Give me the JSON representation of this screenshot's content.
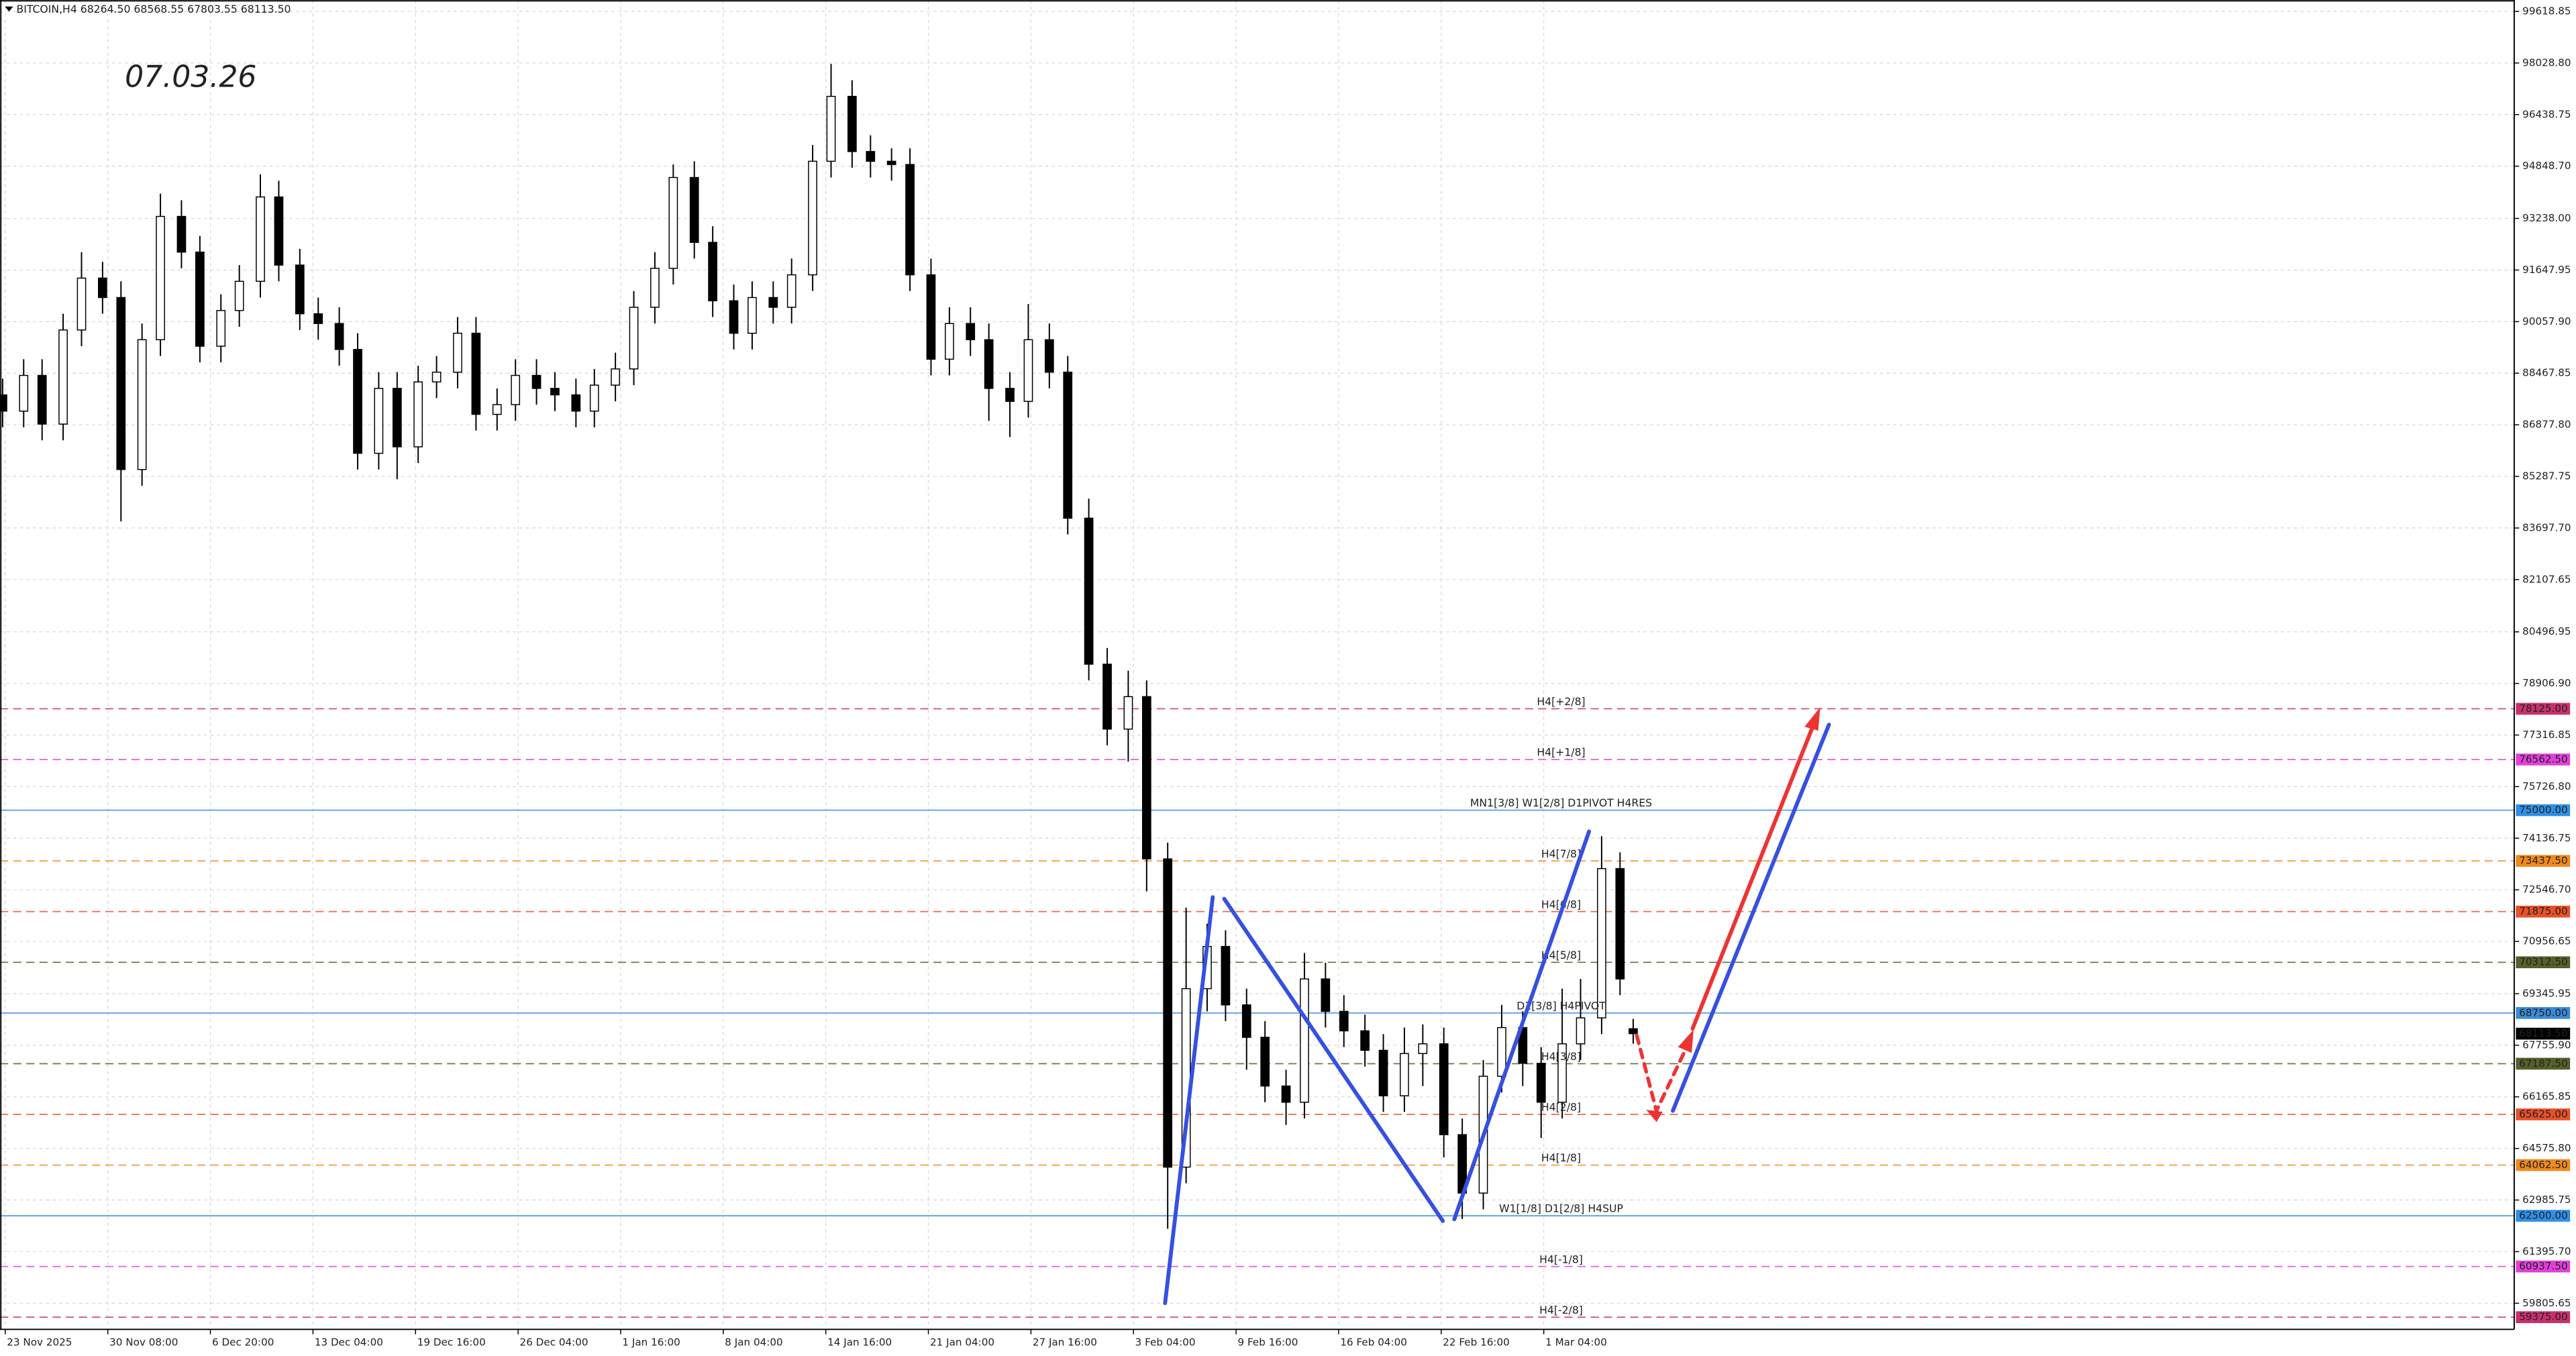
{
  "chart_data": {
    "type": "candlestick",
    "header": "BITCOIN,H4  68264.50 68568.55 67803.55 68113.50",
    "annotation": "07.03.26",
    "color": "#000000",
    "up_color": "#ffffff",
    "down_color": "#000000",
    "grid": true,
    "xlim": [
      -1,
      955
    ],
    "ylim": [
      59050,
      99970
    ],
    "x": [
      0,
      8,
      15,
      23,
      30,
      38,
      45,
      53,
      60,
      68,
      75,
      83,
      90,
      98,
      105,
      113,
      120,
      128,
      135,
      143,
      150,
      158,
      165,
      173,
      180,
      188,
      195,
      203,
      210,
      218,
      225,
      233,
      240,
      248,
      255,
      263,
      270,
      278,
      285,
      293,
      300,
      308,
      315,
      323,
      330,
      338,
      345,
      353,
      360,
      368,
      375,
      383,
      390,
      398,
      405,
      413,
      420,
      428,
      435,
      443,
      450,
      458,
      465,
      473,
      480,
      488,
      495,
      503,
      510,
      518,
      525,
      533,
      540,
      548,
      555,
      563,
      570,
      578,
      585,
      593,
      600,
      608,
      615,
      620
    ],
    "open": [
      87800,
      87300,
      88400,
      86900,
      89800,
      91400,
      90800,
      85500,
      89500,
      93300,
      92200,
      89300,
      90400,
      91300,
      93900,
      91800,
      90300,
      90000,
      89200,
      86000,
      88000,
      86200,
      88200,
      88500,
      89700,
      87200,
      87500,
      88400,
      88000,
      87800,
      87300,
      88100,
      88600,
      90500,
      91700,
      94500,
      92500,
      90700,
      89700,
      90800,
      90500,
      91500,
      95000,
      97000,
      95300,
      95000,
      94900,
      91500,
      88900,
      90000,
      89500,
      88000,
      87600,
      89500,
      88500,
      84000,
      79500,
      77500,
      78500,
      73500,
      64000,
      69500,
      70800,
      69000,
      68000,
      66500,
      66000,
      69800,
      68800,
      68200,
      67600,
      66200,
      67500,
      67800,
      65000,
      63200,
      66800,
      68300,
      67200,
      66000,
      67800,
      68600,
      73200,
      68264.5
    ],
    "high": [
      88300,
      88900,
      88900,
      90300,
      92200,
      91900,
      91300,
      90000,
      94000,
      93800,
      92700,
      90900,
      91800,
      94600,
      94400,
      92300,
      90800,
      90500,
      89700,
      88500,
      88500,
      88700,
      89000,
      90200,
      90200,
      88000,
      88900,
      88900,
      88500,
      88300,
      88600,
      89100,
      91000,
      92200,
      94900,
      95000,
      93000,
      91200,
      91300,
      91300,
      92000,
      95500,
      98000,
      97500,
      95800,
      95400,
      95400,
      92000,
      90500,
      90500,
      90000,
      88500,
      90600,
      90000,
      89000,
      84600,
      80000,
      79300,
      79000,
      74000,
      72000,
      71500,
      71300,
      69500,
      68500,
      67000,
      70600,
      70300,
      69300,
      68700,
      68100,
      68300,
      68400,
      68300,
      65500,
      67300,
      69000,
      68800,
      67700,
      69500,
      69800,
      74200,
      73700,
      68568.55
    ],
    "low": [
      86800,
      86800,
      86400,
      86400,
      89300,
      90300,
      83900,
      85000,
      89000,
      91700,
      88800,
      88800,
      89900,
      90800,
      91300,
      89800,
      89500,
      88700,
      85500,
      85500,
      85200,
      85700,
      87700,
      88000,
      86700,
      86700,
      87000,
      87500,
      87300,
      86800,
      86800,
      87600,
      88100,
      90000,
      91200,
      92000,
      90200,
      89200,
      89200,
      90000,
      90000,
      91000,
      94500,
      94800,
      94500,
      94400,
      91000,
      88400,
      88400,
      89000,
      87000,
      86500,
      87100,
      88000,
      83500,
      79000,
      77000,
      76500,
      72500,
      62100,
      63500,
      68800,
      68500,
      67000,
      66000,
      65300,
      65500,
      68300,
      67700,
      67100,
      65700,
      65700,
      66500,
      64300,
      62400,
      62700,
      66300,
      66500,
      64900,
      65500,
      67300,
      68100,
      69300,
      67803.55
    ],
    "close": [
      87300,
      88400,
      86900,
      89800,
      91400,
      90800,
      85500,
      89500,
      93300,
      92200,
      89300,
      90400,
      91300,
      93900,
      91800,
      90300,
      90000,
      89200,
      86000,
      88000,
      86200,
      88200,
      88500,
      89700,
      87200,
      87500,
      88400,
      88000,
      87800,
      87300,
      88100,
      88600,
      90500,
      91700,
      94500,
      92500,
      90700,
      89700,
      90800,
      90500,
      91500,
      95000,
      97000,
      95300,
      95000,
      94900,
      91500,
      88900,
      90000,
      89500,
      88000,
      87600,
      89500,
      88500,
      84000,
      79500,
      77500,
      78500,
      73500,
      64000,
      69500,
      70800,
      69000,
      68000,
      66500,
      66000,
      69800,
      68800,
      68200,
      67600,
      66200,
      67500,
      67800,
      65000,
      63200,
      66800,
      68300,
      67200,
      66000,
      67800,
      68600,
      73200,
      69800,
      68113.5
    ],
    "xticks": [
      {
        "value": 1,
        "label": "23 Nov 2025"
      },
      {
        "value": 40,
        "label": "30 Nov 08:00"
      },
      {
        "value": 79,
        "label": "6 Dec 20:00"
      },
      {
        "value": 118,
        "label": "13 Dec 04:00"
      },
      {
        "value": 157,
        "label": "19 Dec 16:00"
      },
      {
        "value": 196,
        "label": "26 Dec 04:00"
      },
      {
        "value": 235,
        "label": "1 Jan 16:00"
      },
      {
        "value": 274,
        "label": "8 Jan 04:00"
      },
      {
        "value": 313,
        "label": "14 Jan 16:00"
      },
      {
        "value": 352,
        "label": "21 Jan 04:00"
      },
      {
        "value": 391,
        "label": "27 Jan 16:00"
      },
      {
        "value": 430,
        "label": "3 Feb 04:00"
      },
      {
        "value": 469,
        "label": "9 Feb 16:00"
      },
      {
        "value": 508,
        "label": "16 Feb 04:00"
      },
      {
        "value": 547,
        "label": "22 Feb 16:00"
      },
      {
        "value": 586,
        "label": "1 Mar 04:00"
      }
    ],
    "yticks": [
      99618.85,
      {
        "value": 98028.8,
        "label": "98028.80"
      },
      96438.75,
      {
        "value": 94848.7,
        "label": "94848.70"
      },
      {
        "value": 93238,
        "label": "93238.00"
      },
      91647.95,
      {
        "value": 90057.9,
        "label": "90057.90"
      },
      88467.85,
      {
        "value": 86877.8,
        "label": "86877.80"
      },
      85287.75,
      {
        "value": 83697.7,
        "label": "83697.70"
      },
      82107.65,
      80496.95,
      {
        "value": 78906.9,
        "label": "78906.90"
      },
      77316.85,
      {
        "value": 75726.8,
        "label": "75726.80"
      },
      74136.75,
      {
        "value": 72546.7,
        "label": "72546.70"
      },
      70956.65,
      69345.95,
      {
        "value": 67755.9,
        "label": "67755.90"
      },
      66165.85,
      {
        "value": 64575.8,
        "label": "64575.80"
      },
      62985.75,
      {
        "value": 61395.7,
        "label": "61395.70"
      },
      59805.65
    ],
    "levels": [
      {
        "value": 78125,
        "label": "78125.00",
        "name": "H4[+2/8]",
        "color": "#c8306e",
        "dashed": true
      },
      {
        "value": 76562.5,
        "label": "76562.50",
        "name": "H4[+1/8]",
        "color": "#e040d8",
        "dashed": true
      },
      {
        "value": 75000,
        "label": "75000.00",
        "name": "MN1[3/8] W1[2/8] D1PIVOT H4RES",
        "color": "#2f8fe6",
        "dashed": false
      },
      {
        "value": 73437.5,
        "label": "73437.50",
        "name": "H4[7/8]",
        "color": "#f08a1c",
        "dashed": true
      },
      {
        "value": 71875,
        "label": "71875.00",
        "name": "H4[6/8]",
        "color": "#e8502a",
        "dashed": true
      },
      {
        "value": 70312.5,
        "label": "70312.50",
        "name": "H4[5/8]",
        "color": "#55602a",
        "dashed": true
      },
      {
        "value": 68750,
        "label": "68750.00",
        "name": "D1[3/8] H4PIVOT",
        "color": "#3a8ad8",
        "dashed": false
      },
      {
        "value": 67187.5,
        "label": "67187.50",
        "name": "H4[3/8]",
        "color": "#55602a",
        "dashed": true
      },
      {
        "value": 65625,
        "label": "65625.00",
        "name": "H4[2/8]",
        "color": "#e8502a",
        "dashed": true
      },
      {
        "value": 64062.5,
        "label": "64062.50",
        "name": "H4[1/8]",
        "color": "#f08a1c",
        "dashed": true
      },
      {
        "value": 62500,
        "label": "62500.00",
        "name": "W1[1/8] D1[2/8] H4SUP",
        "color": "#2f8fe6",
        "dashed": false
      },
      {
        "value": 60937.5,
        "label": "60937.50",
        "name": "H4[-1/8]",
        "color": "#e040d8",
        "dashed": true
      },
      {
        "value": 59375,
        "label": "59375.00",
        "name": "H4[-2/8]",
        "color": "#c8306e",
        "dashed": true
      }
    ],
    "last": {
      "value": 68113.5,
      "label": "68113.50"
    }
  }
}
